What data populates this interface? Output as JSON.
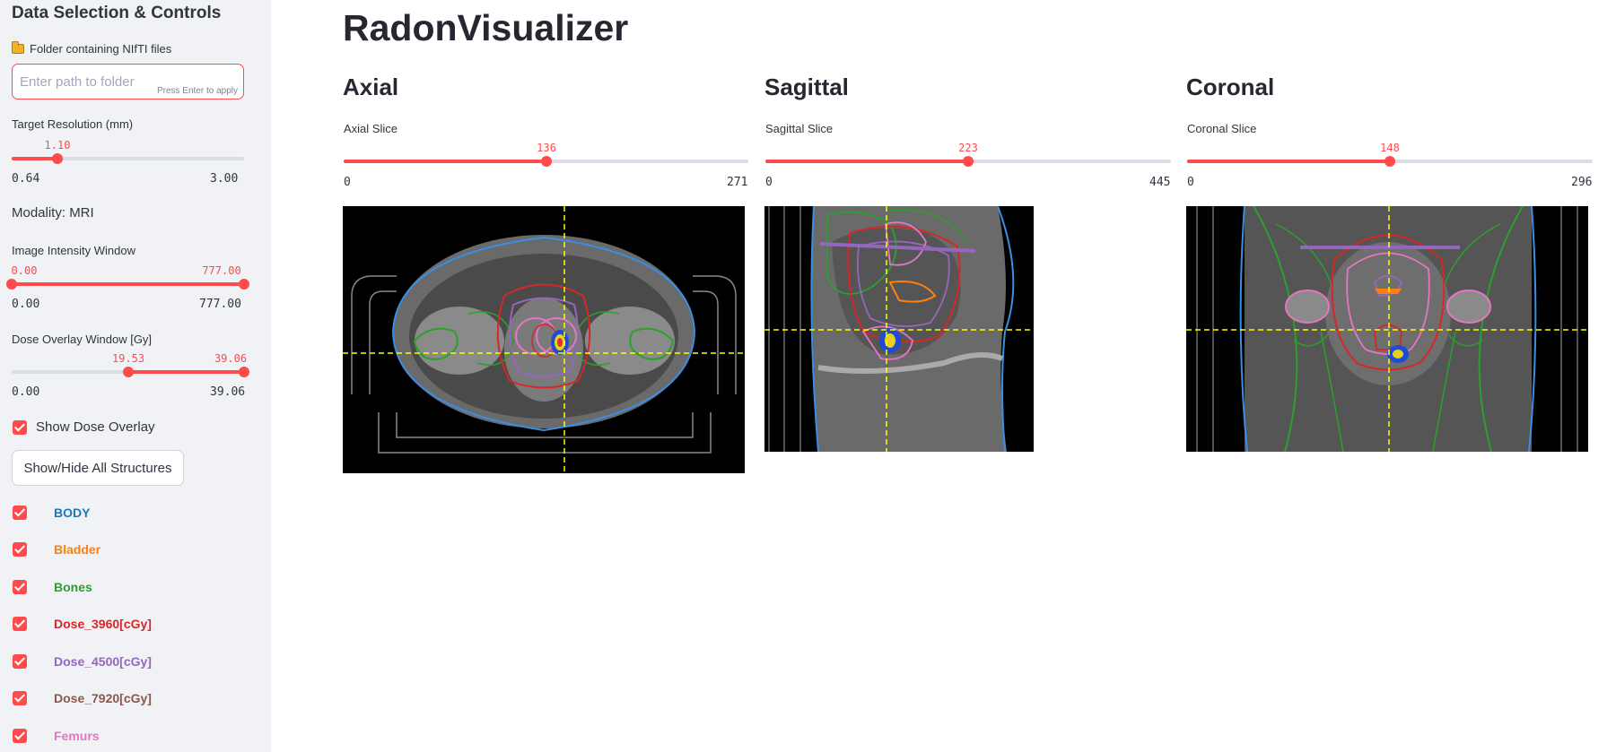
{
  "sidebar": {
    "title": "Data Selection & Controls",
    "folder": {
      "label": "Folder containing NIfTI files",
      "icon": "folder-icon",
      "placeholder": "Enter path to folder",
      "value": "",
      "hint": "Press Enter to apply"
    },
    "resolution": {
      "label": "Target Resolution (mm)",
      "value": "1.10",
      "min": "0.64",
      "max": "3.00"
    },
    "modality": "Modality: MRI",
    "intensity": {
      "label": "Image Intensity Window",
      "low": "0.00",
      "high": "777.00",
      "min": "0.00",
      "max": "777.00"
    },
    "dose_window": {
      "label": "Dose Overlay Window [Gy]",
      "low": "19.53",
      "high": "39.06",
      "min": "0.00",
      "max": "39.06"
    },
    "show_dose_overlay": {
      "label": "Show Dose Overlay",
      "checked": true
    },
    "toggle_button": "Show/Hide All Structures",
    "structures": [
      {
        "name": "BODY",
        "color": "#1f77b4",
        "checked": true
      },
      {
        "name": "Bladder",
        "color": "#ff7f0e",
        "checked": true
      },
      {
        "name": "Bones",
        "color": "#2ca02c",
        "checked": true
      },
      {
        "name": "Dose_3960[cGy]",
        "color": "#d62728",
        "checked": true
      },
      {
        "name": "Dose_4500[cGy]",
        "color": "#9467bd",
        "checked": true
      },
      {
        "name": "Dose_7920[cGy]",
        "color": "#8c564b",
        "checked": true
      },
      {
        "name": "Femurs",
        "color": "#e377c2",
        "checked": true
      }
    ]
  },
  "main": {
    "title": "RadonVisualizer",
    "views": [
      {
        "title": "Axial",
        "slice_label": "Axial Slice",
        "value": "136",
        "min": "0",
        "max": "271",
        "fraction": 0.502
      },
      {
        "title": "Sagittal",
        "slice_label": "Sagittal Slice",
        "value": "223",
        "min": "0",
        "max": "445",
        "fraction": 0.501
      },
      {
        "title": "Coronal",
        "slice_label": "Coronal Slice",
        "value": "148",
        "min": "0",
        "max": "296",
        "fraction": 0.5
      }
    ]
  },
  "colors": {
    "accent": "#ff4b4b",
    "sidebar_bg": "#f0f2f6",
    "crosshair": "#ffff00"
  }
}
